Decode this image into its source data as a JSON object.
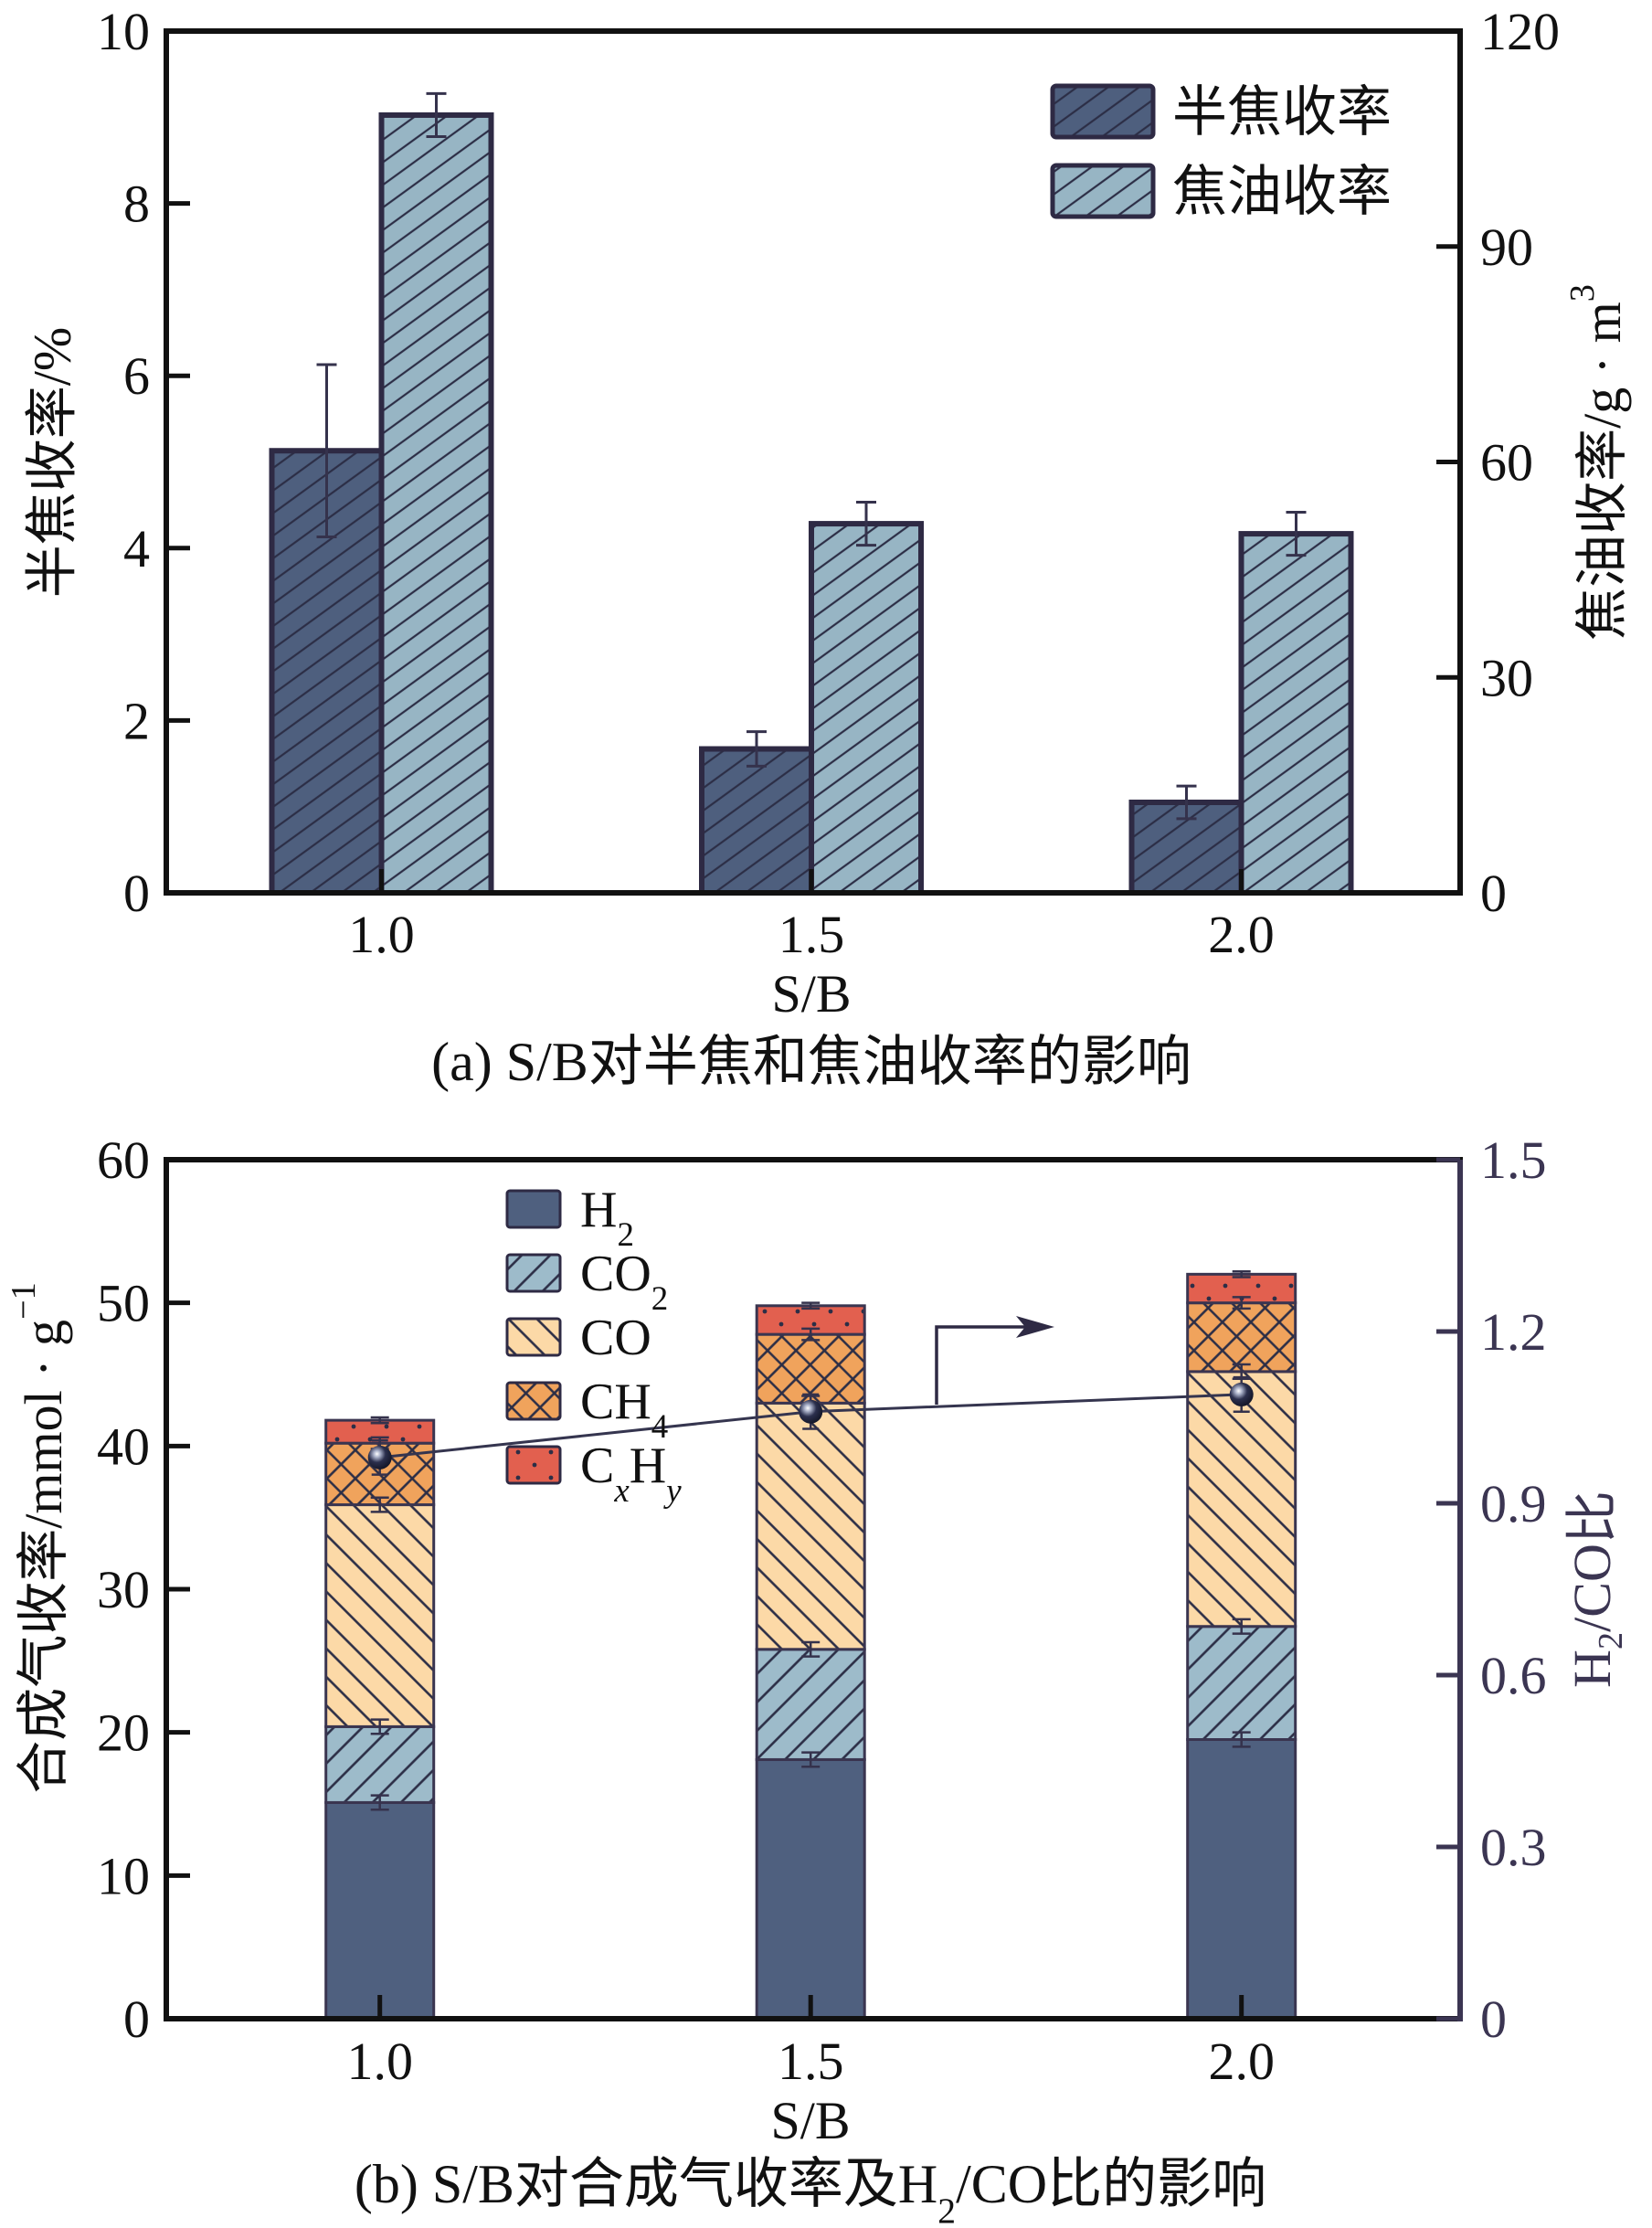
{
  "colors": {
    "bar_outline": "#2e2a44",
    "hatch_line": "#2c2e46",
    "segment_outline": "#3a3550",
    "error_bar": "#35324c",
    "right_axis_b": "#3b3552",
    "ratio_line": "#35354f",
    "arrow": "#2e2a44"
  },
  "chart_data": [
    {
      "panel": "a",
      "type": "bar",
      "caption": "(a) S/B对半焦和焦油收率的影响",
      "x": {
        "label": "S/B",
        "categories": [
          "1.0",
          "1.5",
          "2.0"
        ]
      },
      "y_left": {
        "label": "半焦收率/%",
        "range": [
          0,
          10
        ],
        "ticks": [
          0,
          2,
          4,
          6,
          8,
          10
        ]
      },
      "y_right": {
        "label_parts": [
          {
            "t": "焦油收率/g · m"
          },
          {
            "t": "3",
            "sup": true
          }
        ],
        "range": [
          0,
          120
        ],
        "ticks": [
          0,
          30,
          60,
          90,
          120
        ]
      },
      "legend_position": "top-right",
      "grid": false,
      "series": [
        {
          "name": "半焦收率",
          "axis": "left",
          "values": [
            5.13,
            1.67,
            1.05
          ],
          "errors": [
            1.0,
            0.2,
            0.19
          ],
          "color": "#4e5f7e",
          "pattern": "diagonal-forward"
        },
        {
          "name": "焦油收率",
          "axis": "right",
          "values": [
            108.3,
            51.4,
            50.0
          ],
          "errors": [
            3.0,
            3.0,
            3.0
          ],
          "color": "#97b5c4",
          "pattern": "diagonal-forward"
        }
      ]
    },
    {
      "panel": "b",
      "type": "bar",
      "stacked": true,
      "caption_parts": [
        {
          "t": "(b) S/B对合成气收率及H"
        },
        {
          "t": "2",
          "sub": true
        },
        {
          "t": "/CO比的影响"
        }
      ],
      "x": {
        "label": "S/B",
        "categories": [
          "1.0",
          "1.5",
          "2.0"
        ]
      },
      "y_left": {
        "label_parts": [
          {
            "t": "合成气收率/mmol · g"
          },
          {
            "t": "−1",
            "sup": true
          }
        ],
        "range": [
          0,
          60
        ],
        "ticks": [
          0,
          10,
          20,
          30,
          40,
          50,
          60
        ]
      },
      "y_right": {
        "label_parts": [
          {
            "t": "H"
          },
          {
            "t": "2",
            "sub": true
          },
          {
            "t": "/CO比"
          }
        ],
        "range": [
          0,
          1.5
        ],
        "ticks": [
          0,
          0.3,
          0.6,
          0.9,
          1.2,
          1.5
        ]
      },
      "legend_position": "top-left",
      "grid": false,
      "series": [
        {
          "name": "H2",
          "label_parts": [
            {
              "t": "H"
            },
            {
              "t": "2",
              "sub": true
            }
          ],
          "values": [
            15.1,
            18.1,
            19.5
          ],
          "errors": [
            0.5,
            0.5,
            0.5
          ],
          "color": "#4f607f",
          "pattern": "solid"
        },
        {
          "name": "CO2",
          "label_parts": [
            {
              "t": "CO"
            },
            {
              "t": "2",
              "sub": true
            }
          ],
          "values": [
            5.3,
            7.7,
            7.9
          ],
          "errors": [
            0.5,
            0.5,
            0.5
          ],
          "color": "#9dbbca",
          "pattern": "diagonal-forward"
        },
        {
          "name": "CO",
          "label_parts": [
            {
              "t": "CO"
            }
          ],
          "values": [
            15.5,
            17.2,
            17.8
          ],
          "errors": [
            0.5,
            0.5,
            0.5
          ],
          "color": "#fcd9a7",
          "pattern": "diagonal-back"
        },
        {
          "name": "CH4",
          "label_parts": [
            {
              "t": "CH"
            },
            {
              "t": "4",
              "sub": true
            }
          ],
          "values": [
            4.3,
            4.8,
            4.8
          ],
          "errors": [
            0.4,
            0.4,
            0.4
          ],
          "color": "#f0a35c",
          "pattern": "crosshatch"
        },
        {
          "name": "CxHy",
          "label_parts": [
            {
              "t": "C"
            },
            {
              "t": "x",
              "sub": true,
              "it": true
            },
            {
              "t": "H"
            },
            {
              "t": "y",
              "sub": true,
              "it": true
            }
          ],
          "values": [
            1.6,
            2.0,
            2.0
          ],
          "errors": [
            0.2,
            0.2,
            0.2
          ],
          "color": "#e2604f",
          "pattern": "dots"
        }
      ],
      "line_series": {
        "name": "H2/CO比",
        "axis": "right",
        "values": [
          0.98,
          1.06,
          1.09
        ],
        "errors": [
          0.03,
          0.03,
          0.03
        ],
        "color": "#2b2f4d",
        "marker": "sphere"
      },
      "annotations": [
        {
          "type": "arrow",
          "direction": "right",
          "points_to": "right-axis"
        }
      ]
    }
  ]
}
